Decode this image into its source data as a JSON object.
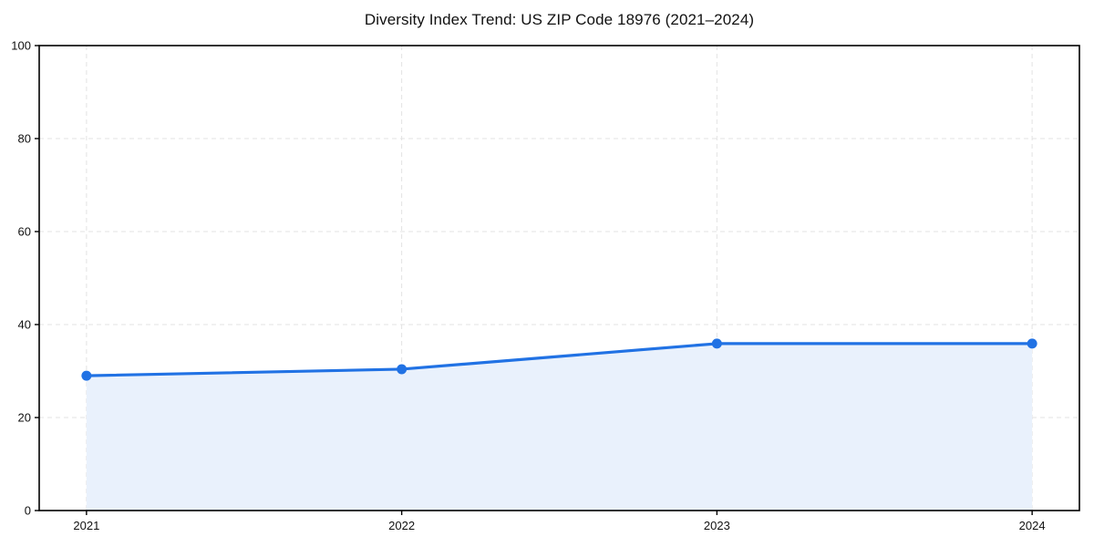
{
  "page": {
    "background": "#ffffff"
  },
  "chart_data": {
    "type": "line",
    "title": "Diversity Index Trend: US ZIP Code 18976 (2021–2024)",
    "x": [
      2021,
      2022,
      2023,
      2024
    ],
    "x_tick_labels": [
      "2021",
      "2022",
      "2023",
      "2024"
    ],
    "series": [
      {
        "name": "Diversity Index",
        "values": [
          29.0,
          30.4,
          35.9,
          35.9
        ]
      }
    ],
    "xlabel": "",
    "ylabel": "",
    "xlim": [
      2020.85,
      2024.15
    ],
    "ylim": [
      0,
      100
    ],
    "yticks": [
      0,
      20,
      40,
      60,
      80,
      100
    ],
    "grid": {
      "visible": true,
      "style": "dashed",
      "axes": "both"
    },
    "legend": {
      "visible": false
    },
    "area_fill": true,
    "marker": {
      "shape": "circle",
      "radius": 5.5
    },
    "colors": {
      "line": "#2172e4",
      "marker": "#2172e4",
      "fill": "#e9f1fc",
      "grid": "#e3e3e3",
      "spine": "#000000",
      "tick_label": "#111111",
      "title": "#111111"
    }
  }
}
